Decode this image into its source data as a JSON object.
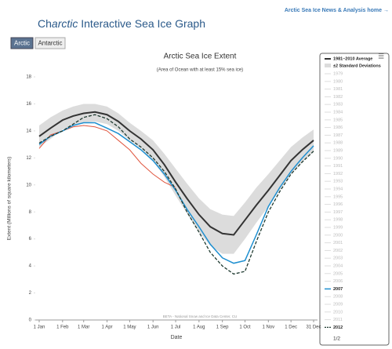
{
  "header": {
    "link": "Arctic Sea Ice News & Analysis home →",
    "title_parts": [
      "Ch",
      "arctic",
      " Interactive Sea Ice Graph"
    ],
    "tabs": [
      "Arctic",
      "Antarctic"
    ]
  },
  "chart_data": {
    "type": "line",
    "title": "Arctic Sea Ice Extent",
    "subtitle": "(Area of Ocean with at least 15% sea ice)",
    "y_label": "Extent (Millions of square kilometers)",
    "x_label": "Date",
    "credit": "BETA - National Snow and Ice Data Center, CU",
    "xlim": [
      1,
      365
    ],
    "xticks": [
      {
        "value": 1,
        "label": "1 Jan"
      },
      {
        "value": 32,
        "label": "1 Feb"
      },
      {
        "value": 60,
        "label": "1 Mar"
      },
      {
        "value": 91,
        "label": "1 Apr"
      },
      {
        "value": 121,
        "label": "1 May"
      },
      {
        "value": 152,
        "label": "1 Jun"
      },
      {
        "value": 182,
        "label": "1 Jul"
      },
      {
        "value": 213,
        "label": "1 Aug"
      },
      {
        "value": 244,
        "label": "1 Sep"
      },
      {
        "value": 274,
        "label": "1 Oct"
      },
      {
        "value": 305,
        "label": "1 Nov"
      },
      {
        "value": 335,
        "label": "1 Dec"
      },
      {
        "value": 365,
        "label": "31 Dec"
      }
    ],
    "ylim": [
      0,
      18
    ],
    "yticks": [
      0,
      2,
      4,
      6,
      8,
      10,
      12,
      14,
      16,
      18
    ],
    "grid": false,
    "x": [
      1,
      16,
      32,
      46,
      60,
      75,
      91,
      106,
      121,
      136,
      152,
      167,
      182,
      197,
      213,
      228,
      244,
      259,
      274,
      289,
      305,
      320,
      335,
      350,
      365
    ],
    "band": {
      "name": "±2 Standard Deviations",
      "color": "#dcdcdc",
      "upper": [
        14.4,
        15.0,
        15.5,
        15.8,
        16.0,
        16.0,
        15.8,
        15.3,
        14.6,
        14.0,
        13.3,
        12.3,
        11.2,
        10.1,
        9.0,
        8.2,
        7.8,
        7.7,
        8.7,
        9.8,
        10.8,
        11.8,
        12.8,
        13.5,
        14.1
      ],
      "lower": [
        12.8,
        13.4,
        14.1,
        14.4,
        14.6,
        14.7,
        14.5,
        14.0,
        13.3,
        12.7,
        11.8,
        10.6,
        9.2,
        7.9,
        6.5,
        5.5,
        4.9,
        4.9,
        6.0,
        7.2,
        8.4,
        9.6,
        10.8,
        11.7,
        12.5
      ]
    },
    "series": [
      {
        "name": "1981–2010 Average",
        "color": "#333333",
        "width": 2,
        "dash": false,
        "values": [
          13.6,
          14.2,
          14.8,
          15.1,
          15.3,
          15.4,
          15.2,
          14.7,
          14.0,
          13.4,
          12.6,
          11.5,
          10.2,
          9.0,
          7.8,
          6.9,
          6.4,
          6.3,
          7.4,
          8.5,
          9.6,
          10.7,
          11.8,
          12.6,
          13.3
        ]
      },
      {
        "name": "2007",
        "color": "#1e8fd0",
        "width": 1.5,
        "dash": false,
        "values": [
          13.0,
          13.6,
          14.0,
          14.4,
          14.6,
          14.6,
          14.2,
          13.8,
          13.2,
          12.6,
          11.8,
          10.8,
          9.6,
          8.2,
          6.9,
          5.6,
          4.6,
          4.2,
          4.4,
          6.3,
          8.4,
          9.8,
          11.0,
          12.0,
          12.9
        ]
      },
      {
        "name": "2012",
        "color": "#1f3a30",
        "width": 1.3,
        "dash": true,
        "values": [
          13.1,
          13.6,
          14.0,
          14.5,
          15.0,
          15.2,
          14.9,
          14.3,
          13.4,
          12.8,
          12.0,
          11.0,
          9.7,
          8.0,
          6.5,
          5.0,
          4.0,
          3.4,
          3.6,
          5.8,
          8.0,
          9.5,
          10.8,
          11.7,
          12.5
        ]
      },
      {
        "color": "#e0563f",
        "width": 1,
        "dash": false,
        "values": [
          12.7,
          13.7,
          14.0,
          14.3,
          14.4,
          14.3,
          14.0,
          13.3,
          12.6,
          11.6,
          10.8,
          10.2,
          9.8,
          null,
          null,
          null,
          null,
          null,
          null,
          null,
          null,
          null,
          null,
          null,
          null
        ]
      }
    ]
  },
  "legend": {
    "menu": "☰",
    "years": [
      "1979",
      "1980",
      "1981",
      "1982",
      "1983",
      "1984",
      "1985",
      "1986",
      "1987",
      "1988",
      "1989",
      "1990",
      "1991",
      "1992",
      "1993",
      "1994",
      "1995",
      "1996",
      "1997",
      "1998",
      "1999",
      "2000",
      "2001",
      "2002",
      "2003",
      "2004",
      "2005",
      "2006",
      "2008",
      "2009",
      "2010",
      "2011"
    ],
    "pager": "1/2"
  }
}
